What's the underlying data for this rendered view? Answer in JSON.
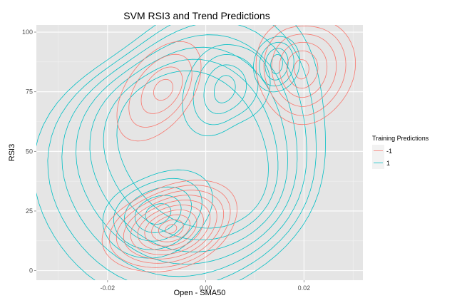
{
  "chart_data": {
    "type": "density-contour",
    "title": "SVM RSI3 and Trend Predictions",
    "xlabel": "Open - SMA50",
    "ylabel": "RSI3",
    "xlim": [
      -0.0345,
      0.032
    ],
    "ylim": [
      -4,
      103
    ],
    "x_ticks": [
      -0.02,
      0.0,
      0.02
    ],
    "x_tick_labels": [
      "-0.02",
      "0.00",
      "0.02"
    ],
    "y_ticks": [
      0,
      25,
      50,
      75,
      100
    ],
    "y_tick_labels": [
      "0",
      "25",
      "50",
      "75",
      "100"
    ],
    "grid": true,
    "legend": {
      "title": "Training Predictions",
      "position": "right",
      "entries": [
        {
          "label": "-1",
          "color": "#F8766D"
        },
        {
          "label": "1",
          "color": "#00BFC4"
        }
      ]
    },
    "series": [
      {
        "name": "-1",
        "color": "#F8766D",
        "peaks": [
          {
            "x": -0.0085,
            "y": 15,
            "levels": 10
          },
          {
            "x": 0.0195,
            "y": 84,
            "levels": 6
          },
          {
            "x": -0.0085,
            "y": 77,
            "levels": 4
          }
        ]
      },
      {
        "name": "1",
        "color": "#00BFC4",
        "peaks": [
          {
            "x": -0.006,
            "y": 22,
            "levels": 5
          },
          {
            "x": 0.004,
            "y": 78,
            "levels": 4
          },
          {
            "x": 0.0155,
            "y": 88,
            "levels": 4
          }
        ],
        "levels": 13
      }
    ]
  }
}
